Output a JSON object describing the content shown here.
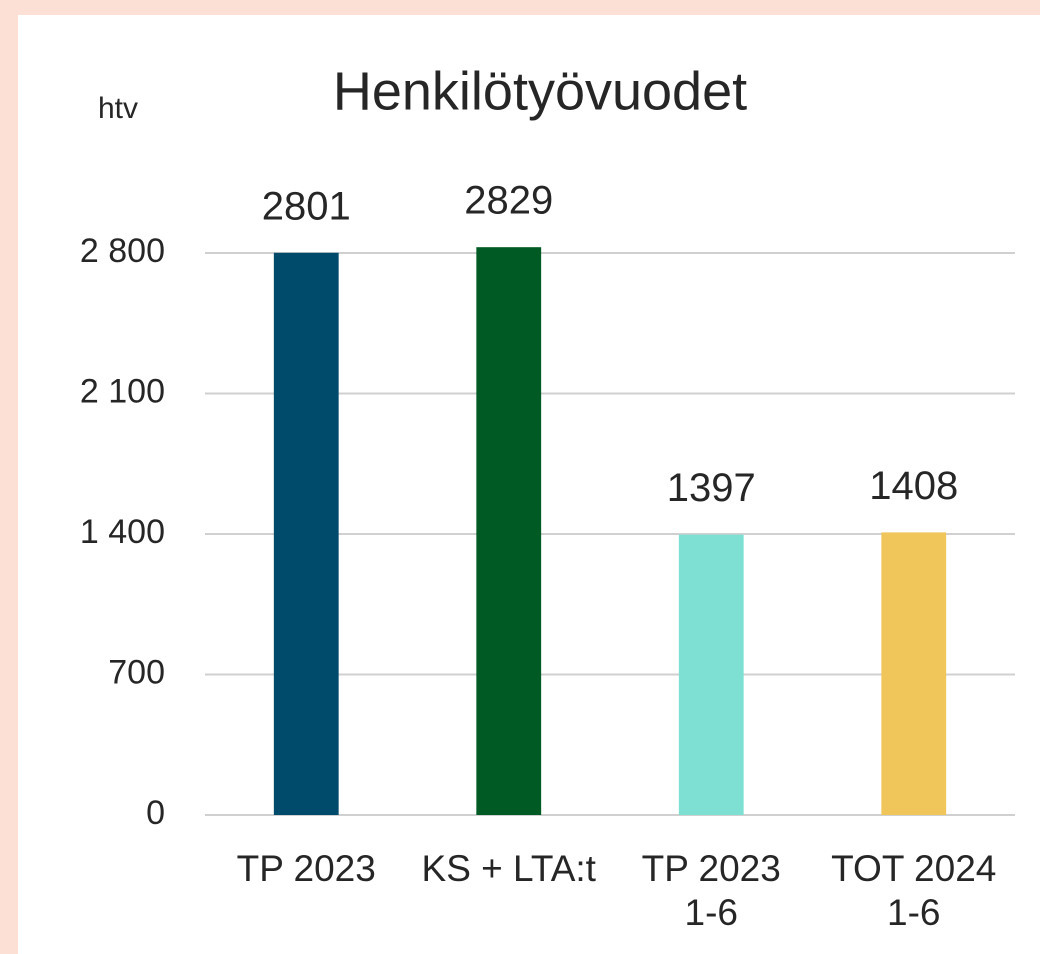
{
  "chart_data": {
    "type": "bar",
    "title": "Henkilötyövuodet",
    "y_label": "htv",
    "categories": [
      "TP 2023",
      "KS + LTA:t",
      "TP 2023\n1-6",
      "TOT 2024\n1-6"
    ],
    "values": [
      2801,
      2829,
      1397,
      1408
    ],
    "colors": [
      "#004a6b",
      "#005a23",
      "#7de0d3",
      "#f0c65a"
    ],
    "ylim": [
      0,
      2800
    ],
    "yticks": [
      0,
      700,
      {
        "value": 1400,
        "label": "1 400"
      },
      {
        "value": 2100,
        "label": "2 100"
      },
      {
        "value": 2800,
        "label": "2 800"
      }
    ],
    "grid": true
  }
}
